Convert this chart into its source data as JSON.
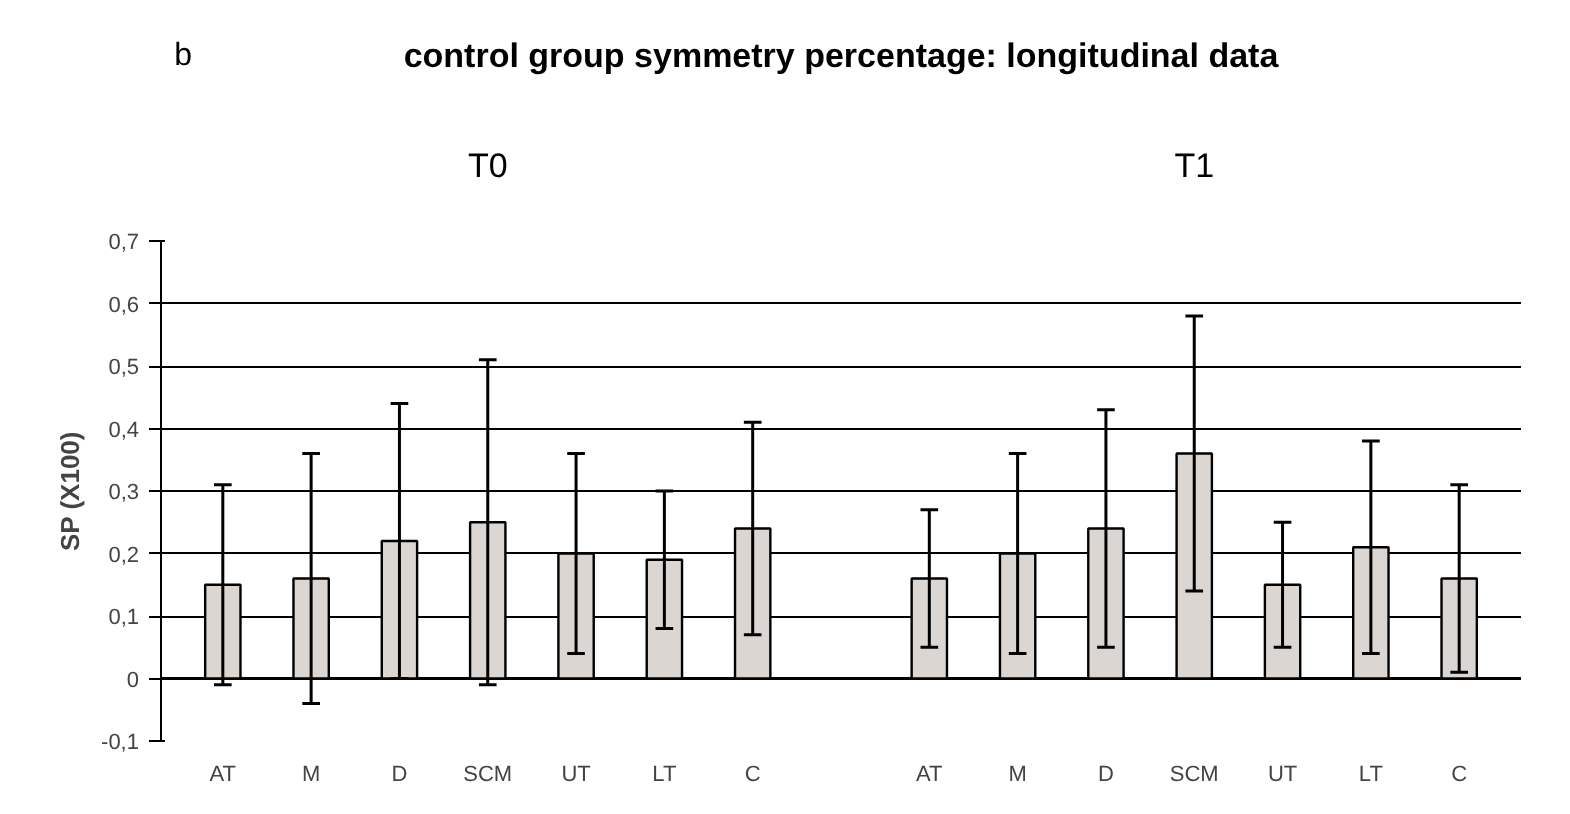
{
  "chart_data": {
    "type": "bar",
    "title": "control group symmetry percentage: longitudinal data",
    "ylabel": "SP (X100)",
    "annotations": [
      "b",
      "T0",
      "T1"
    ],
    "categories": [
      "AT",
      "M",
      "D",
      "SCM",
      "UT",
      "LT",
      "C",
      null,
      "AT",
      "M",
      "D",
      "SCM",
      "UT",
      "LT",
      "C"
    ],
    "series": [
      {
        "color": "#dcd6d2",
        "values": [
          0.15,
          0.16,
          0.22,
          0.25,
          0.2,
          0.19,
          0.24,
          null,
          0.16,
          0.2,
          0.24,
          0.36,
          0.15,
          0.21,
          0.16
        ],
        "errors": [
          0.16,
          0.2,
          0.22,
          0.26,
          0.16,
          0.11,
          0.17,
          null,
          0.11,
          0.16,
          0.19,
          0.22,
          0.1,
          0.17,
          0.15
        ]
      }
    ],
    "ylim": [
      -0.1,
      0.7
    ],
    "yticks": [
      {
        "value": -0.1,
        "label": "-0,1"
      },
      0,
      {
        "value": 0.1,
        "label": "0,1"
      },
      {
        "value": 0.2,
        "label": "0,2"
      },
      {
        "value": 0.3,
        "label": "0,3"
      },
      {
        "value": 0.4,
        "label": "0,4"
      },
      {
        "value": 0.5,
        "label": "0,5"
      },
      {
        "value": 0.6,
        "label": "0,6"
      },
      {
        "value": 0.7,
        "label": "0,7"
      }
    ],
    "grid": "y"
  }
}
